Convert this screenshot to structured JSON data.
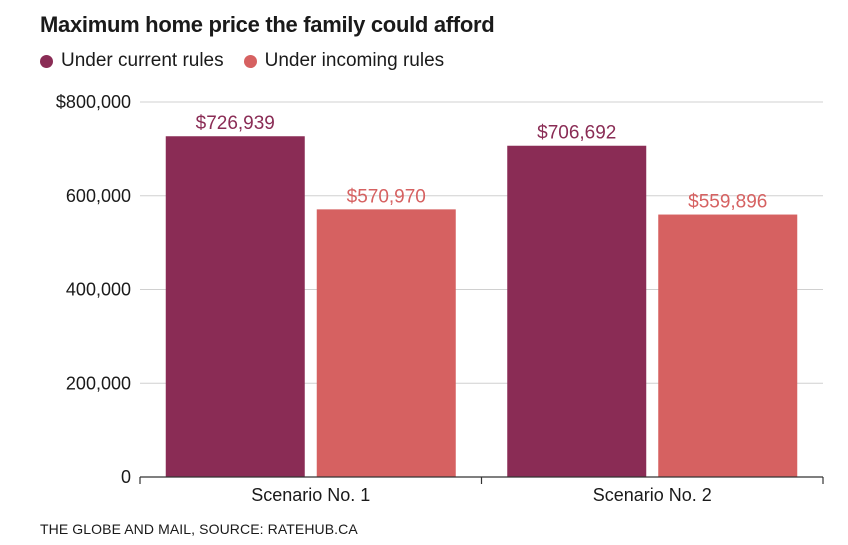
{
  "chart_data": {
    "type": "bar",
    "title": "Maximum home price the family could afford",
    "categories": [
      "Scenario No. 1",
      "Scenario No. 2"
    ],
    "series": [
      {
        "name": "Under current rules",
        "color": "#8a2c55",
        "values": [
          726939,
          706692
        ],
        "labels": [
          "$726,939",
          "$706,692"
        ]
      },
      {
        "name": "Under incoming rules",
        "color": "#d66161",
        "values": [
          570970,
          559896
        ],
        "labels": [
          "$570,970",
          "$559,896"
        ]
      }
    ],
    "ylim": [
      0,
      800000
    ],
    "yticks": [
      0,
      200000,
      400000,
      600000,
      800000
    ],
    "ytick_labels": [
      "0",
      "200,000",
      "400,000",
      "600,000",
      "$800,000"
    ],
    "grid": true,
    "legend_position": "top-left"
  },
  "source": "THE GLOBE AND MAIL, SOURCE: RATEHUB.CA"
}
